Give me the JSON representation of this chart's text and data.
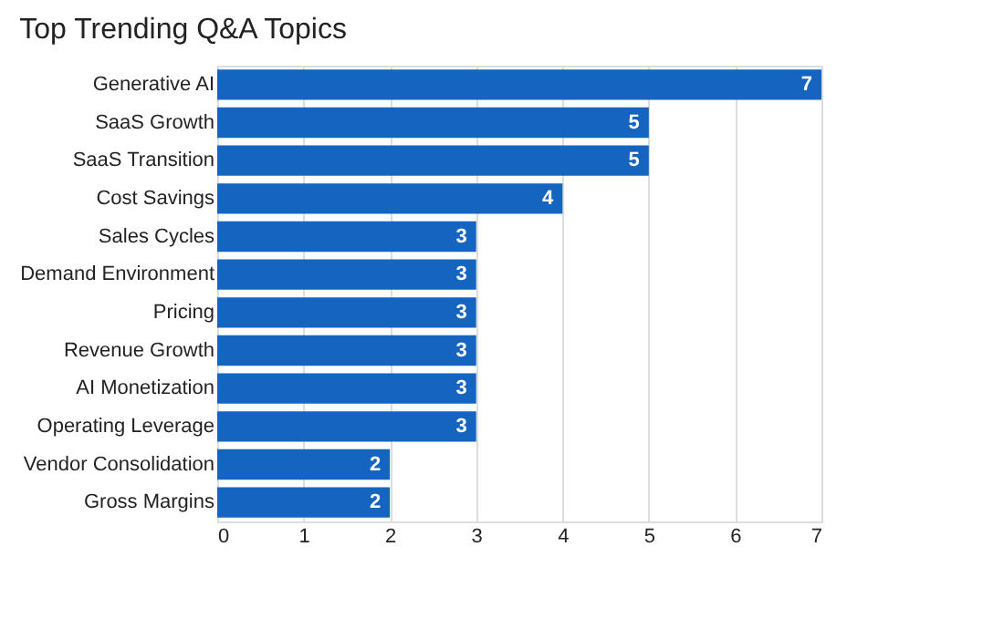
{
  "chart_data": {
    "type": "bar",
    "orientation": "horizontal",
    "title": "Top Trending Q&A Topics",
    "categories": [
      "Generative AI",
      "SaaS Growth",
      "SaaS Transition",
      "Cost Savings",
      "Sales Cycles",
      "Demand Environment",
      "Pricing",
      "Revenue Growth",
      "AI Monetization",
      "Operating Leverage",
      "Vendor Consolidation",
      "Gross Margins"
    ],
    "values": [
      7,
      5,
      5,
      4,
      3,
      3,
      3,
      3,
      3,
      3,
      2,
      2
    ],
    "color": "#1565c0",
    "xlim": [
      0,
      7
    ],
    "xticks": [
      0,
      1,
      2,
      3,
      4,
      5,
      6,
      7
    ],
    "grid": "x",
    "data_labels": true
  }
}
